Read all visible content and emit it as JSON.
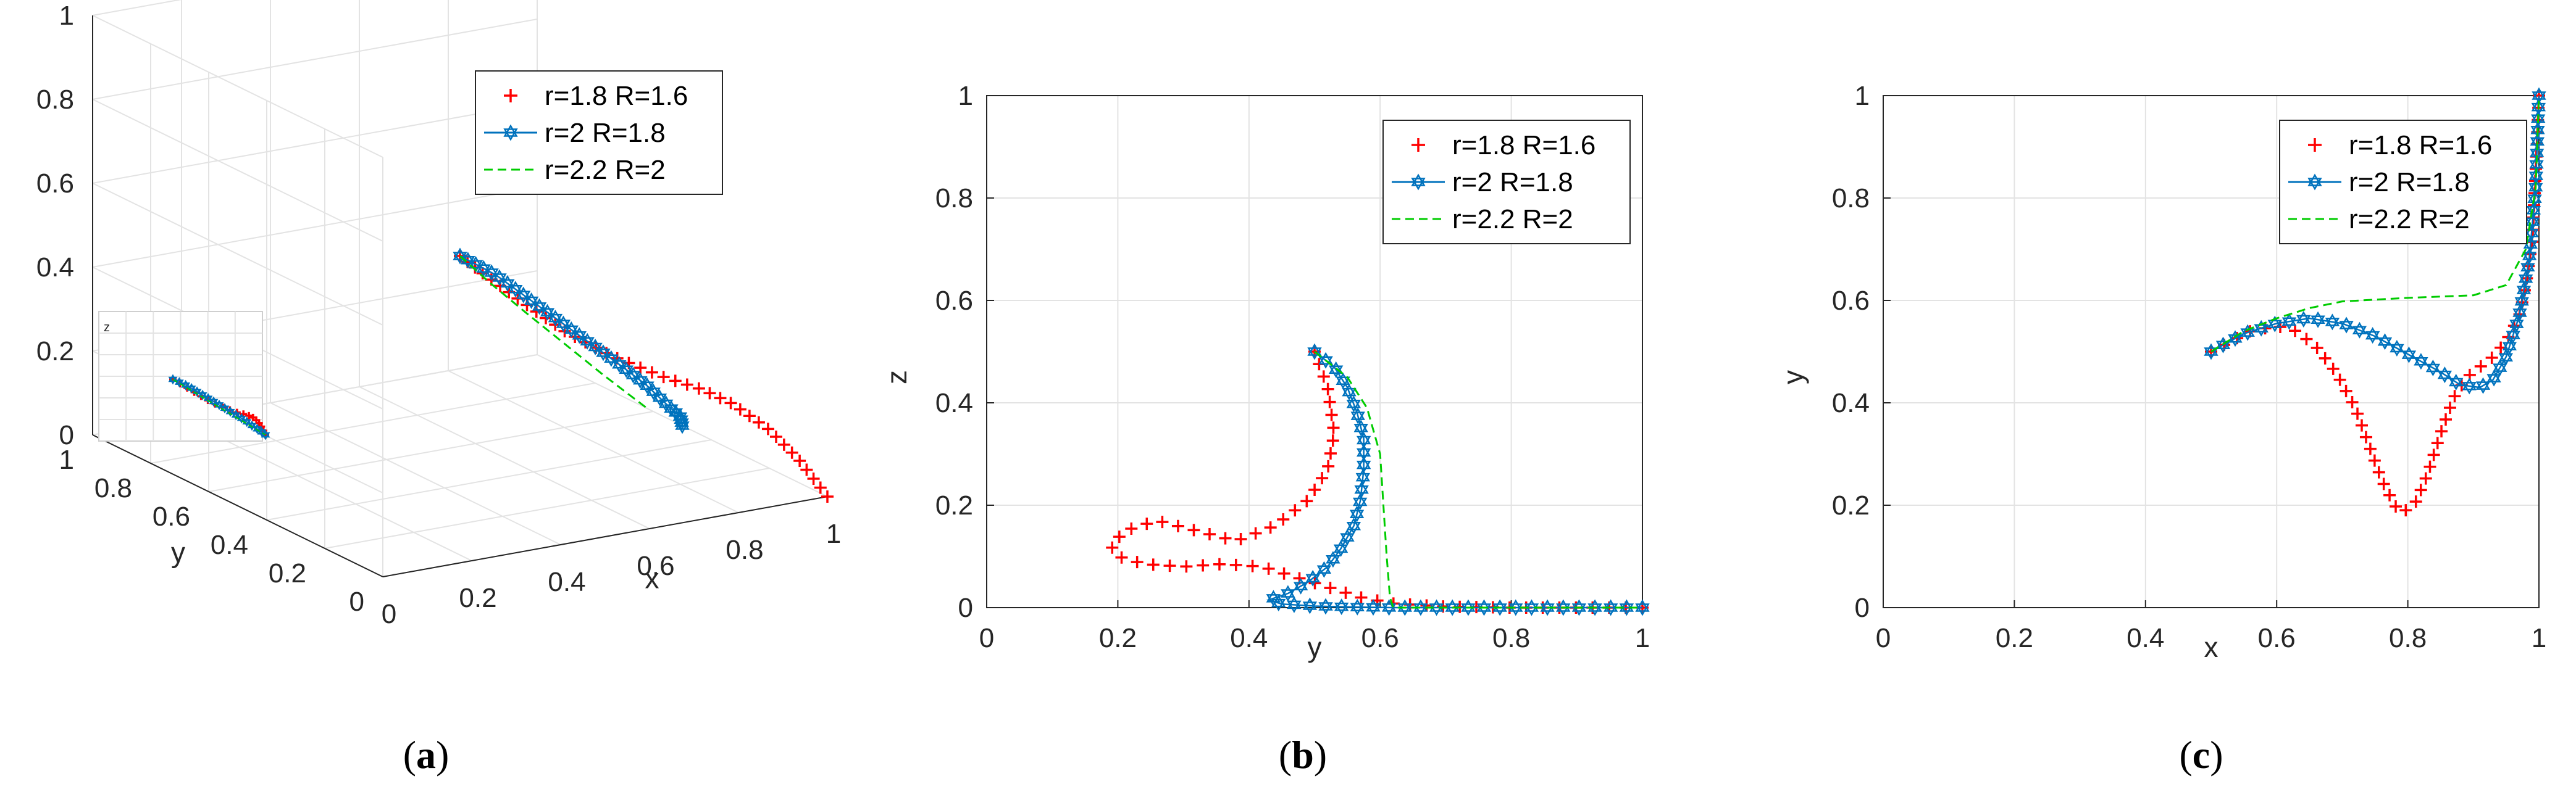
{
  "chart_data": [
    {
      "panel": "a",
      "caption_letter": "a",
      "type": "line",
      "kind": "3d",
      "xlabel": "x",
      "ylabel": "y",
      "zlabel": "z",
      "xlim": [
        0,
        1
      ],
      "ylim": [
        0,
        1
      ],
      "zlim": [
        0,
        1
      ],
      "xticks": [
        "0",
        "0.2",
        "0.4",
        "0.6",
        "0.8",
        "1"
      ],
      "yticks": [
        "0",
        "0.2",
        "0.4",
        "0.6",
        "0.8",
        "1"
      ],
      "zticks": [
        "0",
        "0.2",
        "0.4",
        "0.6",
        "0.8",
        "1"
      ],
      "grid": true,
      "legend_position": "top-right",
      "inset": {
        "zlabel": "z"
      },
      "series": [
        {
          "name": "r=1.8 R=1.6",
          "color": "#ff0000",
          "marker": "plus",
          "line": "none",
          "points": [
            [
              0.5,
              0.5,
              0.5
            ],
            [
              0.55,
              0.5,
              0.45
            ],
            [
              0.62,
              0.48,
              0.38
            ],
            [
              0.7,
              0.44,
              0.3
            ],
            [
              0.78,
              0.4,
              0.24
            ],
            [
              0.85,
              0.34,
              0.2
            ],
            [
              0.9,
              0.28,
              0.18
            ],
            [
              0.93,
              0.22,
              0.16
            ],
            [
              0.96,
              0.14,
              0.12
            ],
            [
              0.98,
              0.07,
              0.07
            ],
            [
              1.0,
              0.0,
              0.0
            ]
          ]
        },
        {
          "name": "r=2    R=1.8",
          "color": "#0072bd",
          "marker": "hexagram",
          "line": "solid",
          "points": [
            [
              0.5,
              0.5,
              0.5
            ],
            [
              0.58,
              0.5,
              0.44
            ],
            [
              0.66,
              0.48,
              0.36
            ],
            [
              0.74,
              0.46,
              0.28
            ],
            [
              0.82,
              0.44,
              0.2
            ],
            [
              0.88,
              0.44,
              0.14
            ],
            [
              0.93,
              0.44,
              0.08
            ],
            [
              0.97,
              0.46,
              0.04
            ],
            [
              1.0,
              0.5,
              0.0
            ]
          ]
        },
        {
          "name": "r=2.2 R=2",
          "color": "#00cc00",
          "marker": "none",
          "line": "dashed",
          "points": [
            [
              0.5,
              0.5,
              0.5
            ],
            [
              0.6,
              0.55,
              0.4
            ],
            [
              0.7,
              0.58,
              0.3
            ],
            [
              0.8,
              0.6,
              0.2
            ],
            [
              0.9,
              0.62,
              0.1
            ],
            [
              1.0,
              0.62,
              0.0
            ]
          ]
        }
      ]
    },
    {
      "panel": "b",
      "caption_letter": "b",
      "type": "line",
      "xlabel": "y",
      "ylabel": "z",
      "xlim": [
        0,
        1
      ],
      "ylim": [
        0,
        1
      ],
      "xticks": [
        "0",
        "0.2",
        "0.4",
        "0.6",
        "0.8",
        "1"
      ],
      "yticks": [
        "0",
        "0.2",
        "0.4",
        "0.6",
        "0.8",
        "1"
      ],
      "grid": true,
      "legend_position": "top-right",
      "series": [
        {
          "name": "r=1.8 R=1.6",
          "color": "#ff0000",
          "marker": "plus",
          "line": "none",
          "points": [
            [
              0.5,
              0.5
            ],
            [
              0.52,
              0.43
            ],
            [
              0.53,
              0.34
            ],
            [
              0.52,
              0.27
            ],
            [
              0.49,
              0.21
            ],
            [
              0.44,
              0.16
            ],
            [
              0.38,
              0.13
            ],
            [
              0.32,
              0.15
            ],
            [
              0.26,
              0.17
            ],
            [
              0.21,
              0.15
            ],
            [
              0.19,
              0.12
            ],
            [
              0.2,
              0.1
            ],
            [
              0.24,
              0.085
            ],
            [
              0.3,
              0.08
            ],
            [
              0.36,
              0.085
            ],
            [
              0.42,
              0.08
            ],
            [
              0.47,
              0.06
            ],
            [
              0.52,
              0.04
            ],
            [
              0.57,
              0.02
            ],
            [
              0.62,
              0.008
            ],
            [
              0.7,
              0.002
            ],
            [
              0.8,
              0.0
            ],
            [
              0.9,
              0.0
            ],
            [
              1.0,
              0.0
            ]
          ]
        },
        {
          "name": "r=2    R=1.8",
          "color": "#0072bd",
          "marker": "hexagram",
          "line": "solid",
          "points": [
            [
              0.5,
              0.5
            ],
            [
              0.53,
              0.47
            ],
            [
              0.55,
              0.43
            ],
            [
              0.565,
              0.38
            ],
            [
              0.575,
              0.33
            ],
            [
              0.575,
              0.27
            ],
            [
              0.57,
              0.21
            ],
            [
              0.56,
              0.16
            ],
            [
              0.54,
              0.115
            ],
            [
              0.52,
              0.08
            ],
            [
              0.49,
              0.05
            ],
            [
              0.46,
              0.028
            ],
            [
              0.43,
              0.015
            ],
            [
              0.45,
              0.007
            ],
            [
              0.5,
              0.003
            ],
            [
              0.56,
              0.001
            ],
            [
              0.62,
              0.0
            ],
            [
              0.7,
              0.0
            ],
            [
              0.8,
              0.0
            ],
            [
              0.9,
              0.0
            ],
            [
              1.0,
              0.0
            ]
          ]
        },
        {
          "name": "r=2.2 R=2",
          "color": "#00cc00",
          "marker": "none",
          "line": "dashed",
          "points": [
            [
              0.5,
              0.5
            ],
            [
              0.55,
              0.45
            ],
            [
              0.58,
              0.39
            ],
            [
              0.6,
              0.3
            ],
            [
              0.605,
              0.2
            ],
            [
              0.61,
              0.1
            ],
            [
              0.615,
              0.02
            ],
            [
              0.62,
              0.0
            ],
            [
              0.7,
              0.0
            ],
            [
              0.85,
              0.0
            ],
            [
              1.0,
              0.0
            ]
          ]
        }
      ]
    },
    {
      "panel": "c",
      "caption_letter": "c",
      "type": "line",
      "xlabel": "x",
      "ylabel": "y",
      "xlim": [
        0,
        1
      ],
      "ylim": [
        0,
        1
      ],
      "xticks": [
        "0",
        "0.2",
        "0.4",
        "0.6",
        "0.8",
        "1"
      ],
      "yticks": [
        "0",
        "0.2",
        "0.4",
        "0.6",
        "0.8",
        "1"
      ],
      "grid": true,
      "legend_position": "top-right",
      "series": [
        {
          "name": "r=1.8 R=1.6",
          "color": "#ff0000",
          "marker": "plus",
          "line": "none",
          "points": [
            [
              0.5,
              0.5
            ],
            [
              0.53,
              0.52
            ],
            [
              0.56,
              0.54
            ],
            [
              0.6,
              0.55
            ],
            [
              0.63,
              0.54
            ],
            [
              0.66,
              0.51
            ],
            [
              0.69,
              0.46
            ],
            [
              0.72,
              0.39
            ],
            [
              0.74,
              0.32
            ],
            [
              0.76,
              0.25
            ],
            [
              0.78,
              0.2
            ],
            [
              0.79,
              0.185
            ],
            [
              0.81,
              0.2
            ],
            [
              0.83,
              0.26
            ],
            [
              0.85,
              0.34
            ],
            [
              0.87,
              0.41
            ],
            [
              0.89,
              0.45
            ],
            [
              0.91,
              0.47
            ],
            [
              0.93,
              0.49
            ],
            [
              0.95,
              0.52
            ],
            [
              0.97,
              0.57
            ],
            [
              0.98,
              0.63
            ],
            [
              0.99,
              0.72
            ],
            [
              0.995,
              0.85
            ],
            [
              1.0,
              1.0
            ]
          ]
        },
        {
          "name": "r=2    R=1.8",
          "color": "#0072bd",
          "marker": "hexagram",
          "line": "solid",
          "points": [
            [
              0.5,
              0.5
            ],
            [
              0.55,
              0.535
            ],
            [
              0.6,
              0.555
            ],
            [
              0.65,
              0.565
            ],
            [
              0.7,
              0.555
            ],
            [
              0.75,
              0.53
            ],
            [
              0.8,
              0.495
            ],
            [
              0.85,
              0.46
            ],
            [
              0.88,
              0.435
            ],
            [
              0.91,
              0.43
            ],
            [
              0.93,
              0.445
            ],
            [
              0.95,
              0.49
            ],
            [
              0.97,
              0.57
            ],
            [
              0.985,
              0.68
            ],
            [
              0.995,
              0.82
            ],
            [
              1.0,
              1.0
            ]
          ]
        },
        {
          "name": "r=2.2 R=2",
          "color": "#00cc00",
          "marker": "none",
          "line": "dashed",
          "points": [
            [
              0.5,
              0.5
            ],
            [
              0.55,
              0.54
            ],
            [
              0.6,
              0.565
            ],
            [
              0.65,
              0.585
            ],
            [
              0.7,
              0.598
            ],
            [
              0.8,
              0.605
            ],
            [
              0.9,
              0.61
            ],
            [
              0.95,
              0.63
            ],
            [
              0.98,
              0.7
            ],
            [
              0.995,
              0.82
            ],
            [
              1.0,
              1.0
            ]
          ]
        }
      ]
    }
  ]
}
